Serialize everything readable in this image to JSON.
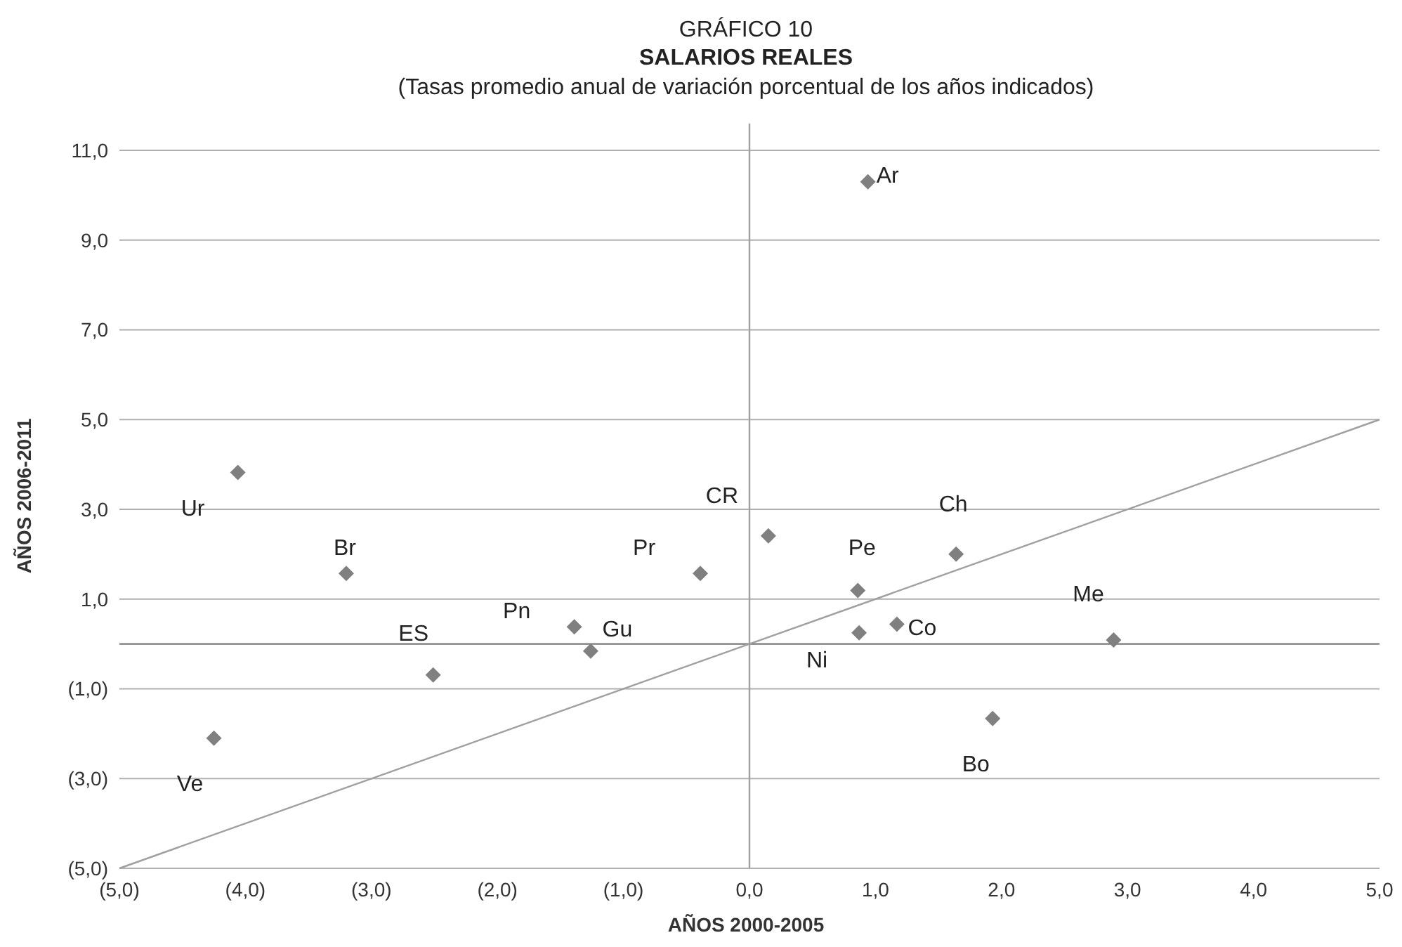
{
  "chart_data": {
    "type": "scatter",
    "title": "GRÁFICO 10",
    "subtitle": "SALARIOS REALES",
    "xlabel": "AÑOS 2000-2005",
    "ylabel": "AÑOS 2006-2011",
    "xlim": [
      -5,
      5
    ],
    "ylim": [
      -5,
      11.6
    ],
    "xticks": [
      {
        "value": -5,
        "label": "(5,0)"
      },
      {
        "value": -4,
        "label": "(4,0)"
      },
      {
        "value": -3,
        "label": "(3,0)"
      },
      {
        "value": -2,
        "label": "(2,0)"
      },
      {
        "value": -1,
        "label": "(1,0)"
      },
      {
        "value": 0,
        "label": "0,0"
      },
      {
        "value": 1,
        "label": "1,0"
      },
      {
        "value": 2,
        "label": "2,0"
      },
      {
        "value": 3,
        "label": "3,0"
      },
      {
        "value": 4,
        "label": "4,0"
      },
      {
        "value": 5,
        "label": "5,0"
      }
    ],
    "yticks": [
      {
        "value": -5,
        "label": "(5,0)"
      },
      {
        "value": -3,
        "label": "(3,0)"
      },
      {
        "value": -1,
        "label": "(1,0)"
      },
      {
        "value": 1,
        "label": "1,0"
      },
      {
        "value": 3,
        "label": "3,0"
      },
      {
        "value": 5,
        "label": "5,0"
      },
      {
        "value": 7,
        "label": "7,0"
      },
      {
        "value": 9,
        "label": "9,0"
      },
      {
        "value": 11,
        "label": "11,0"
      }
    ],
    "grid": "y",
    "marker": "diamond",
    "series": [
      {
        "color": "#808080",
        "x": [
          0.94,
          -4.06,
          -3.2,
          -2.51,
          -4.25,
          -1.39,
          -1.26,
          -0.39,
          0.15,
          0.86,
          0.87,
          1.17,
          1.64,
          2.89,
          1.93
        ],
        "values": [
          10.3,
          3.82,
          1.57,
          -0.69,
          -2.1,
          0.38,
          -0.16,
          1.57,
          2.41,
          1.19,
          0.25,
          0.44,
          2.0,
          0.09,
          -1.66
        ]
      },
      {
        "type": "line",
        "color": "#a0a0a0",
        "marker": "none",
        "x": [
          -5,
          5
        ],
        "values": [
          -5,
          5
        ]
      }
    ],
    "ref_lines": [
      {
        "axis": "x",
        "value": 0,
        "color": "#a0a0a0"
      },
      {
        "axis": "y",
        "value": 0,
        "color": "#7a7a7a"
      }
    ],
    "annotations": [
      "(Tasas promedio anual de variación porcentual de los años indicados)",
      {
        "text": "Ar",
        "x": 0.94,
        "y": 10.3
      },
      {
        "text": "Ur",
        "x": -4.06,
        "y": 3.82
      },
      {
        "text": "Br",
        "x": -3.2,
        "y": 1.57
      },
      {
        "text": "ES",
        "x": -2.51,
        "y": -0.69
      },
      {
        "text": "Ve",
        "x": -4.25,
        "y": -2.1
      },
      {
        "text": "Pn",
        "x": -1.39,
        "y": 0.38
      },
      {
        "text": "Gu",
        "x": -1.26,
        "y": -0.16
      },
      {
        "text": "Pr",
        "x": -0.39,
        "y": 1.57
      },
      {
        "text": "CR",
        "x": 0.15,
        "y": 2.41
      },
      {
        "text": "Pe",
        "x": 0.86,
        "y": 1.19
      },
      {
        "text": "Ni",
        "x": 0.87,
        "y": 0.25
      },
      {
        "text": "Co",
        "x": 1.17,
        "y": 0.44
      },
      {
        "text": "Ch",
        "x": 1.64,
        "y": 2.0
      },
      {
        "text": "Me",
        "x": 2.89,
        "y": 0.09
      },
      {
        "text": "Bo",
        "x": 1.93,
        "y": -1.66
      }
    ]
  }
}
